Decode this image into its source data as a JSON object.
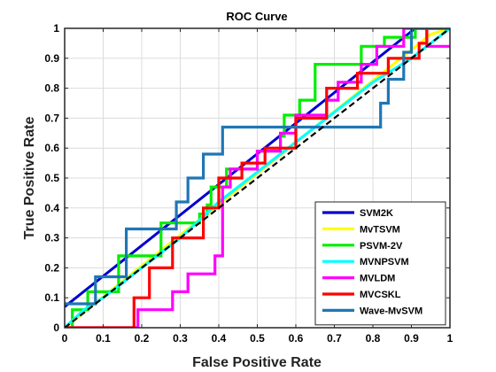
{
  "chart_data": {
    "type": "line",
    "title": "ROC Curve",
    "xlabel": "False Positive Rate",
    "ylabel": "True Positive Rate",
    "xlim": [
      0,
      1
    ],
    "ylim": [
      0,
      1
    ],
    "xticks": [
      "0",
      "0.1",
      "0.2",
      "0.3",
      "0.4",
      "0.5",
      "0.6",
      "0.7",
      "0.8",
      "0.9",
      "1"
    ],
    "yticks": [
      "0",
      "0.1",
      "0.2",
      "0.3",
      "0.4",
      "0.5",
      "0.6",
      "0.7",
      "0.8",
      "0.9",
      "1"
    ],
    "grid": true,
    "legend_position": "bottom-right",
    "chance_line": {
      "style": "dashed",
      "color": "#000000",
      "x": [
        0,
        1
      ],
      "y": [
        0,
        1
      ]
    },
    "series": [
      {
        "name": "SVM2K",
        "color": "#0000cc",
        "x": [
          0,
          0.91,
          1
        ],
        "y": [
          0.07,
          1,
          1
        ]
      },
      {
        "name": "MvTSVM",
        "color": "#ffff00",
        "x": [
          0,
          0.95,
          1
        ],
        "y": [
          0,
          0.98,
          1
        ]
      },
      {
        "name": "PSVM-2V",
        "color": "#00ee00",
        "x": [
          0,
          0.02,
          0.02,
          0.06,
          0.06,
          0.14,
          0.14,
          0.25,
          0.25,
          0.35,
          0.35,
          0.37,
          0.37,
          0.38,
          0.38,
          0.42,
          0.42,
          0.5,
          0.5,
          0.56,
          0.56,
          0.57,
          0.57,
          0.61,
          0.61,
          0.65,
          0.65,
          0.68,
          0.68,
          0.77,
          0.77,
          0.83,
          0.83,
          0.91,
          0.91,
          1
        ],
        "y": [
          0,
          0,
          0.06,
          0.06,
          0.12,
          0.12,
          0.24,
          0.24,
          0.35,
          0.35,
          0.38,
          0.38,
          0.41,
          0.41,
          0.47,
          0.47,
          0.53,
          0.53,
          0.59,
          0.59,
          0.64,
          0.64,
          0.71,
          0.71,
          0.76,
          0.76,
          0.88,
          0.88,
          0.88,
          0.88,
          0.94,
          0.94,
          0.97,
          0.97,
          1,
          1
        ]
      },
      {
        "name": "MVNPSVM",
        "color": "#00ffff",
        "x": [
          0,
          0.05,
          0.1,
          0.15,
          0.2,
          0.25,
          0.3,
          0.35,
          0.4,
          0.45,
          0.5,
          0.55,
          0.6,
          0.65,
          0.7,
          0.75,
          0.8,
          0.85,
          0.9,
          0.95,
          1
        ],
        "y": [
          0,
          0.06,
          0.1,
          0.15,
          0.2,
          0.25,
          0.3,
          0.36,
          0.42,
          0.47,
          0.52,
          0.57,
          0.62,
          0.67,
          0.72,
          0.77,
          0.82,
          0.86,
          0.9,
          0.95,
          1
        ]
      },
      {
        "name": "MVLDM",
        "color": "#ff00ff",
        "x": [
          0,
          0.19,
          0.19,
          0.28,
          0.28,
          0.32,
          0.32,
          0.39,
          0.39,
          0.41,
          0.41,
          0.43,
          0.43,
          0.5,
          0.5,
          0.56,
          0.56,
          0.6,
          0.6,
          0.68,
          0.68,
          0.71,
          0.71,
          0.77,
          0.77,
          0.81,
          0.81,
          0.85,
          0.85,
          0.88,
          0.88,
          0.94,
          0.94,
          1
        ],
        "y": [
          0,
          0,
          0.06,
          0.06,
          0.12,
          0.12,
          0.18,
          0.18,
          0.24,
          0.24,
          0.47,
          0.47,
          0.53,
          0.53,
          0.59,
          0.59,
          0.65,
          0.65,
          0.71,
          0.71,
          0.76,
          0.76,
          0.82,
          0.82,
          0.88,
          0.88,
          0.94,
          0.94,
          0.94,
          0.94,
          1,
          1,
          0.94,
          0.94
        ]
      },
      {
        "name": "MVCSKL",
        "color": "#ff0000",
        "x": [
          0,
          0.18,
          0.18,
          0.22,
          0.22,
          0.28,
          0.28,
          0.36,
          0.36,
          0.4,
          0.4,
          0.46,
          0.46,
          0.52,
          0.52,
          0.6,
          0.6,
          0.68,
          0.68,
          0.76,
          0.76,
          0.84,
          0.84,
          0.92,
          0.92,
          0.94,
          0.94,
          1
        ],
        "y": [
          0,
          0,
          0.1,
          0.1,
          0.2,
          0.2,
          0.3,
          0.3,
          0.4,
          0.4,
          0.5,
          0.5,
          0.55,
          0.55,
          0.6,
          0.6,
          0.7,
          0.7,
          0.8,
          0.8,
          0.85,
          0.85,
          0.9,
          0.9,
          0.95,
          0.95,
          1,
          1
        ]
      },
      {
        "name": "Wave-MvSVM",
        "color": "#1f77b4",
        "x": [
          0,
          0.08,
          0.08,
          0.16,
          0.16,
          0.17,
          0.17,
          0.25,
          0.25,
          0.29,
          0.29,
          0.32,
          0.32,
          0.36,
          0.36,
          0.41,
          0.41,
          0.82,
          0.82,
          0.84,
          0.84,
          0.88,
          0.88,
          0.9,
          0.9,
          0.92,
          0.92,
          1
        ],
        "y": [
          0.08,
          0.08,
          0.17,
          0.17,
          0.33,
          0.33,
          0.33,
          0.33,
          0.33,
          0.33,
          0.42,
          0.42,
          0.5,
          0.5,
          0.58,
          0.58,
          0.67,
          0.67,
          0.75,
          0.75,
          0.83,
          0.83,
          0.92,
          0.92,
          1,
          1,
          1,
          1
        ]
      }
    ]
  }
}
